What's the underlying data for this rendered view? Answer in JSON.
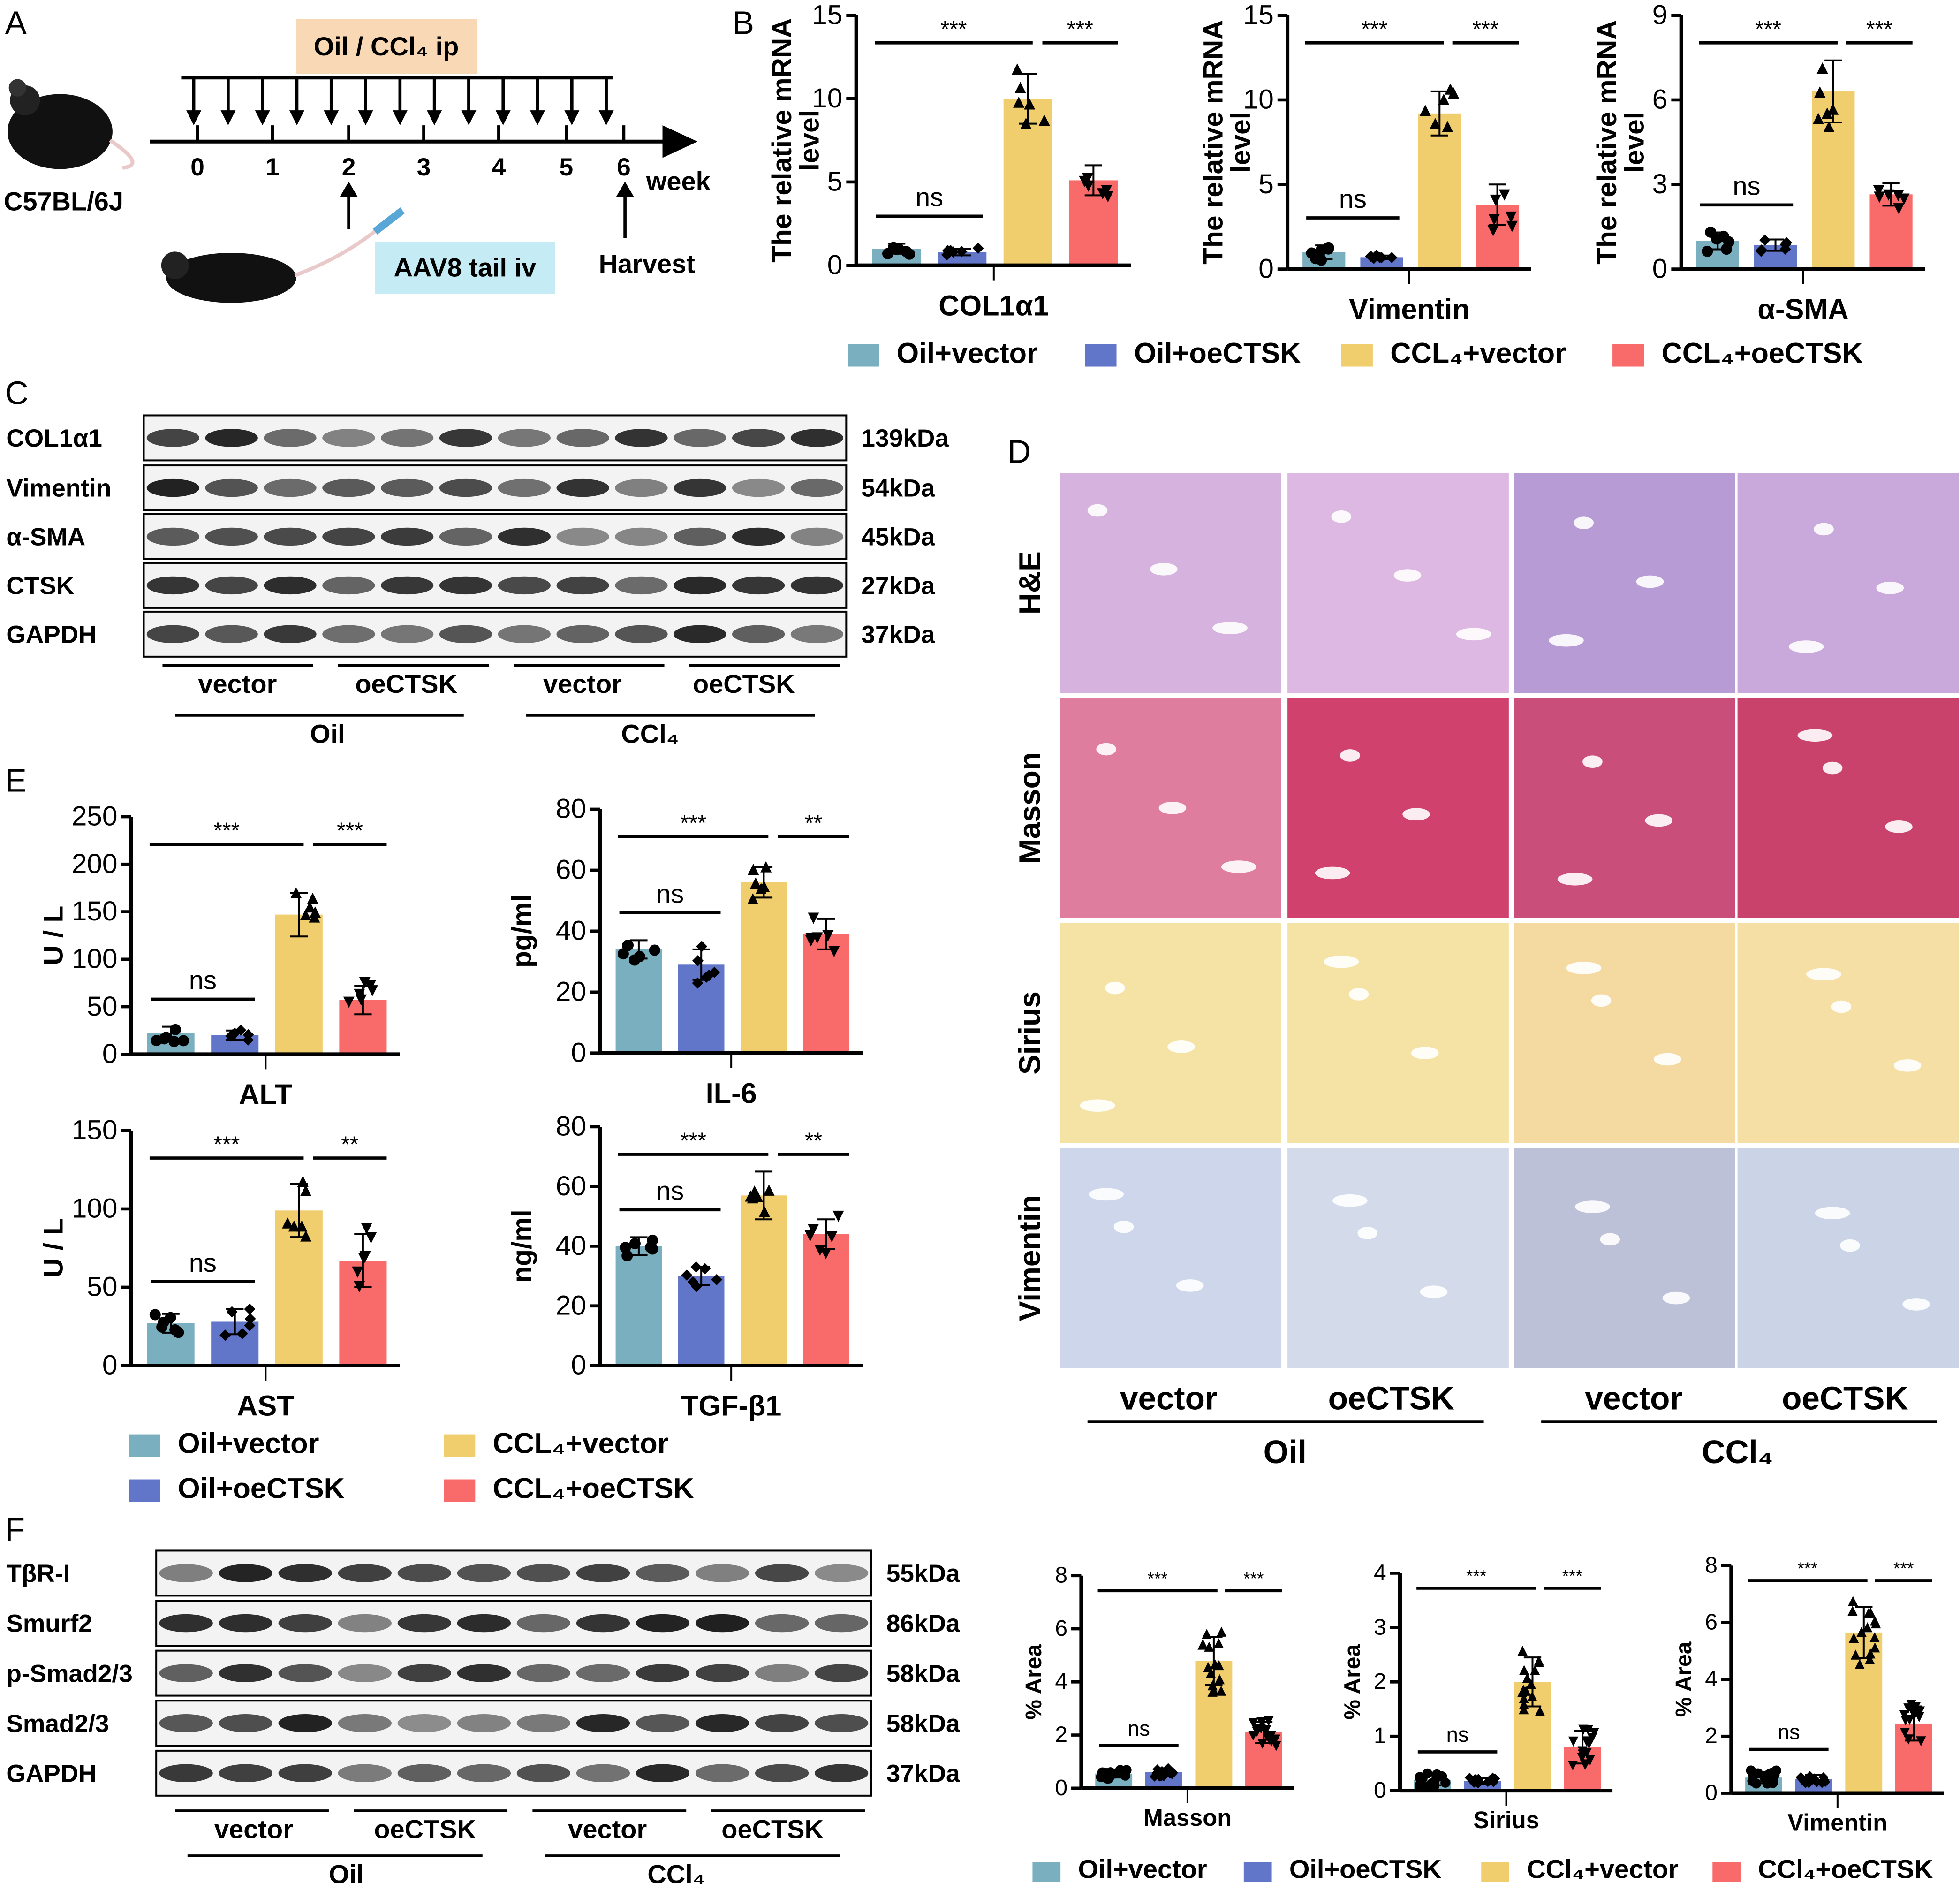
{
  "panels": {
    "A": "A",
    "B": "B",
    "C": "C",
    "D": "D",
    "E": "E",
    "F": "F"
  },
  "colors": {
    "oil_vector": "#7aafbf",
    "oil_oectsk": "#6175c9",
    "ccl4_vector": "#f0ce6e",
    "ccl4_oectsk": "#f96b6b"
  },
  "panel_a": {
    "strain": "C57BL/6J",
    "treatment": "Oil / CCl₄ ip",
    "injection": "AAV8 tail iv",
    "harvest": "Harvest",
    "unit": "week",
    "weeks": [
      "0",
      "1",
      "2",
      "3",
      "4",
      "5",
      "6"
    ]
  },
  "legend_b": [
    "Oil+vector",
    "Oil+oeCTSK",
    "CCL₄+vector",
    "CCL₄+oeCTSK"
  ],
  "legend_e": [
    "Oil+vector",
    "Oil+oeCTSK",
    "CCL₄+vector",
    "CCL₄+oeCTSK"
  ],
  "legend_f": [
    "Oil+vector",
    "Oil+oeCTSK",
    "CCl₄+vector",
    "CCl₄+oeCTSK"
  ],
  "blot_c": {
    "rows": [
      {
        "protein": "COL1α1",
        "size": "139kDa"
      },
      {
        "protein": "Vimentin",
        "size": "54kDa"
      },
      {
        "protein": "α-SMA",
        "size": "45kDa"
      },
      {
        "protein": "CTSK",
        "size": "27kDa"
      },
      {
        "protein": "GAPDH",
        "size": "37kDa"
      }
    ],
    "groups": [
      "vector",
      "oeCTSK",
      "vector",
      "oeCTSK"
    ],
    "treatments": [
      "Oil",
      "CCl₄"
    ]
  },
  "blot_f": {
    "rows": [
      {
        "protein": "TβR-I",
        "size": "55kDa"
      },
      {
        "protein": "Smurf2",
        "size": "86kDa"
      },
      {
        "protein": "p-Smad2/3",
        "size": "58kDa"
      },
      {
        "protein": "Smad2/3",
        "size": "58kDa"
      },
      {
        "protein": "GAPDH",
        "size": "37kDa"
      }
    ],
    "groups": [
      "vector",
      "oeCTSK",
      "vector",
      "oeCTSK"
    ],
    "treatments": [
      "Oil",
      "CCl₄"
    ]
  },
  "histology": {
    "stains": [
      "H&E",
      "Masson",
      "Sirius",
      "Vimentin"
    ],
    "groups": [
      "vector",
      "oeCTSK",
      "vector",
      "oeCTSK"
    ],
    "treatments": [
      "Oil",
      "CCl₄"
    ]
  },
  "chart_data": [
    {
      "panel": "B",
      "type": "bar",
      "categories": [
        "Oil+vector",
        "Oil+oeCTSK",
        "CCL₄+vector",
        "CCL₄+oeCTSK"
      ],
      "values": [
        1.0,
        0.8,
        10.0,
        5.1
      ],
      "errors": [
        0.3,
        0.2,
        1.5,
        0.9
      ],
      "n": 6,
      "xlabel": "COL1α1",
      "ylabel": [
        "The relative mRNA",
        "level"
      ],
      "ylim": [
        0,
        15
      ],
      "ticks": [
        "0",
        "5",
        "10",
        "15"
      ],
      "significance": [
        {
          "groups": [
            0,
            1
          ],
          "label": "ns"
        },
        {
          "groups": [
            0,
            2
          ],
          "label": "***"
        },
        {
          "groups": [
            2,
            3
          ],
          "label": "***"
        }
      ]
    },
    {
      "panel": "B",
      "type": "bar",
      "categories": [
        "Oil+vector",
        "Oil+oeCTSK",
        "CCL₄+vector",
        "CCL₄+oeCTSK"
      ],
      "values": [
        1.0,
        0.7,
        9.2,
        3.8
      ],
      "errors": [
        0.4,
        0.1,
        1.3,
        1.2
      ],
      "n": 6,
      "xlabel": "Vimentin",
      "ylabel": [
        "The relative mRNA",
        "level"
      ],
      "ylim": [
        0,
        15
      ],
      "ticks": [
        "0",
        "5",
        "10",
        "15"
      ],
      "significance": [
        {
          "groups": [
            0,
            1
          ],
          "label": "ns"
        },
        {
          "groups": [
            0,
            2
          ],
          "label": "***"
        },
        {
          "groups": [
            2,
            3
          ],
          "label": "***"
        }
      ]
    },
    {
      "panel": "B",
      "type": "bar",
      "categories": [
        "Oil+vector",
        "Oil+oeCTSK",
        "CCL₄+vector",
        "CCL₄+oeCTSK"
      ],
      "values": [
        1.0,
        0.85,
        6.3,
        2.65
      ],
      "errors": [
        0.3,
        0.2,
        1.1,
        0.4
      ],
      "n": 6,
      "xlabel": "α-SMA",
      "ylabel": [
        "The relative mRNA",
        "level"
      ],
      "ylim": [
        0,
        9
      ],
      "ticks": [
        "0",
        "3",
        "6",
        "9"
      ],
      "significance": [
        {
          "groups": [
            0,
            1
          ],
          "label": "ns"
        },
        {
          "groups": [
            0,
            2
          ],
          "label": "***"
        },
        {
          "groups": [
            2,
            3
          ],
          "label": "***"
        }
      ]
    },
    {
      "panel": "E",
      "type": "bar",
      "categories": [
        "Oil+vector",
        "Oil+oeCTSK",
        "CCL₄+vector",
        "CCL₄+oeCTSK"
      ],
      "values": [
        22,
        20,
        147,
        57
      ],
      "errors": [
        7,
        5,
        23,
        15
      ],
      "n": 6,
      "xlabel": "ALT",
      "ylabel": [
        "U / L"
      ],
      "ylim": [
        0,
        250
      ],
      "ticks": [
        "0",
        "50",
        "100",
        "150",
        "200",
        "250"
      ],
      "significance": [
        {
          "groups": [
            0,
            1
          ],
          "label": "ns"
        },
        {
          "groups": [
            0,
            2
          ],
          "label": "***"
        },
        {
          "groups": [
            2,
            3
          ],
          "label": "***"
        }
      ]
    },
    {
      "panel": "E",
      "type": "bar",
      "categories": [
        "Oil+vector",
        "Oil+oeCTSK",
        "CCL₄+vector",
        "CCL₄+oeCTSK"
      ],
      "values": [
        34,
        29,
        56,
        39
      ],
      "errors": [
        3,
        5,
        5,
        5
      ],
      "n": 6,
      "xlabel": "IL-6",
      "ylabel": [
        "pg/ml"
      ],
      "ylim": [
        0,
        80
      ],
      "ticks": [
        "0",
        "20",
        "40",
        "60",
        "80"
      ],
      "significance": [
        {
          "groups": [
            0,
            1
          ],
          "label": "ns"
        },
        {
          "groups": [
            0,
            2
          ],
          "label": "***"
        },
        {
          "groups": [
            2,
            3
          ],
          "label": "**"
        }
      ]
    },
    {
      "panel": "E",
      "type": "bar",
      "categories": [
        "Oil+vector",
        "Oil+oeCTSK",
        "CCL₄+vector",
        "CCL₄+oeCTSK"
      ],
      "values": [
        27,
        28,
        99,
        67
      ],
      "errors": [
        6,
        8,
        17,
        17
      ],
      "n": 6,
      "xlabel": "AST",
      "ylabel": [
        "U / L"
      ],
      "ylim": [
        0,
        150
      ],
      "ticks": [
        "0",
        "50",
        "100",
        "150"
      ],
      "significance": [
        {
          "groups": [
            0,
            1
          ],
          "label": "ns"
        },
        {
          "groups": [
            0,
            2
          ],
          "label": "***"
        },
        {
          "groups": [
            2,
            3
          ],
          "label": "**"
        }
      ]
    },
    {
      "panel": "E",
      "type": "bar",
      "categories": [
        "Oil+vector",
        "Oil+oeCTSK",
        "CCL₄+vector",
        "CCL₄+oeCTSK"
      ],
      "values": [
        40,
        30,
        57,
        44
      ],
      "errors": [
        3,
        3,
        8,
        5
      ],
      "n": 6,
      "xlabel": "TGF-β1",
      "ylabel": [
        "ng/ml"
      ],
      "ylim": [
        0,
        80
      ],
      "ticks": [
        "0",
        "20",
        "40",
        "60",
        "80"
      ],
      "significance": [
        {
          "groups": [
            0,
            1
          ],
          "label": "ns"
        },
        {
          "groups": [
            0,
            2
          ],
          "label": "***"
        },
        {
          "groups": [
            2,
            3
          ],
          "label": "**"
        }
      ]
    },
    {
      "panel": "F",
      "type": "bar",
      "categories": [
        "Oil+vector",
        "Oil+oeCTSK",
        "CCl₄+vector",
        "CCl₄+oeCTSK"
      ],
      "values": [
        0.55,
        0.6,
        4.8,
        2.1
      ],
      "errors": [
        0.15,
        0.15,
        0.9,
        0.4
      ],
      "n": 15,
      "xlabel": "Masson",
      "ylabel": [
        "% Area"
      ],
      "ylim": [
        0,
        8
      ],
      "ticks": [
        "0",
        "2",
        "4",
        "6",
        "8"
      ],
      "significance": [
        {
          "groups": [
            0,
            1
          ],
          "label": "ns"
        },
        {
          "groups": [
            0,
            2
          ],
          "label": "***"
        },
        {
          "groups": [
            2,
            3
          ],
          "label": "***"
        }
      ]
    },
    {
      "panel": "F",
      "type": "bar",
      "categories": [
        "Oil+vector",
        "Oil+oeCTSK",
        "CCl₄+vector",
        "CCl₄+oeCTSK"
      ],
      "values": [
        0.2,
        0.18,
        2.0,
        0.8
      ],
      "errors": [
        0.1,
        0.05,
        0.45,
        0.3
      ],
      "n": 15,
      "xlabel": "Sirius",
      "ylabel": [
        "% Area"
      ],
      "ylim": [
        0,
        4
      ],
      "ticks": [
        "0",
        "1",
        "2",
        "3",
        "4"
      ],
      "significance": [
        {
          "groups": [
            0,
            1
          ],
          "label": "ns"
        },
        {
          "groups": [
            0,
            2
          ],
          "label": "***"
        },
        {
          "groups": [
            2,
            3
          ],
          "label": "***"
        }
      ]
    },
    {
      "panel": "F",
      "type": "bar",
      "categories": [
        "Oil+vector",
        "Oil+oeCTSK",
        "CCl₄+vector",
        "CCl₄+oeCTSK"
      ],
      "values": [
        0.55,
        0.5,
        5.65,
        2.45
      ],
      "errors": [
        0.2,
        0.15,
        0.9,
        0.6
      ],
      "n": 15,
      "xlabel": "Vimentin",
      "ylabel": [
        "% Area"
      ],
      "ylim": [
        0,
        8
      ],
      "ticks": [
        "0",
        "2",
        "4",
        "6",
        "8"
      ],
      "significance": [
        {
          "groups": [
            0,
            1
          ],
          "label": "ns"
        },
        {
          "groups": [
            0,
            2
          ],
          "label": "***"
        },
        {
          "groups": [
            2,
            3
          ],
          "label": "***"
        }
      ]
    }
  ]
}
